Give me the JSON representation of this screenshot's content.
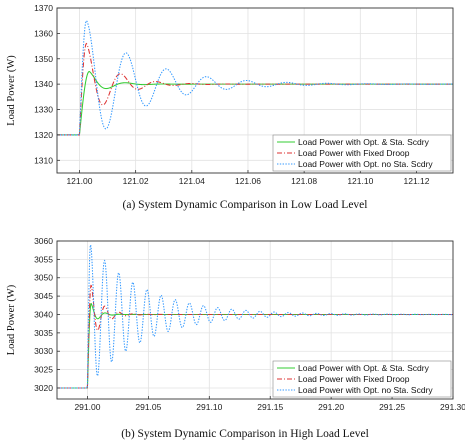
{
  "chart_data": [
    {
      "type": "line",
      "caption": "(a) System Dynamic Comparison in Low Load Level",
      "ylabel": "Load Power (W)",
      "xlabel": "",
      "xlim": [
        120.992,
        121.133
      ],
      "ylim": [
        1305,
        1370
      ],
      "xticks": [
        121.0,
        121.02,
        121.04,
        121.06,
        121.08,
        121.1,
        121.12
      ],
      "xtick_labels": [
        "121.00",
        "121.02",
        "121.04",
        "121.06",
        "121.08",
        "121.10",
        "121.12"
      ],
      "yticks": [
        1310,
        1320,
        1330,
        1340,
        1350,
        1360,
        1370
      ],
      "ytick_labels": [
        "1310",
        "1320",
        "1330",
        "1340",
        "1350",
        "1360",
        "1370"
      ],
      "grid": true,
      "legend_position": "bottom-right",
      "step_time": 121.0,
      "initial_value": 1320,
      "final_value": 1340,
      "series": [
        {
          "name": "Load Power with Opt. & Sta. Scdry",
          "color": "#33cc33",
          "dash": "solid",
          "amplitude": 5,
          "period": 0.0135,
          "tau": 0.006,
          "rise_time": 0.0035
        },
        {
          "name": "Load Power with Fixed Droop",
          "color": "#dd3333",
          "dash": "dashdot",
          "amplitude": 16,
          "period": 0.0125,
          "tau": 0.009,
          "rise_time": 0.0025
        },
        {
          "name": "Load Power with Opt. no Sta. Scdry",
          "color": "#3399ff",
          "dash": "dotted",
          "amplitude": 25,
          "period": 0.0143,
          "tau": 0.02,
          "rise_time": 0.0025
        }
      ]
    },
    {
      "type": "line",
      "caption": "(b) System Dynamic Comparison in High Load Level",
      "ylabel": "Load Power (W)",
      "xlabel": "",
      "xlim": [
        290.975,
        291.3
      ],
      "ylim": [
        3017,
        3060
      ],
      "xticks": [
        291.0,
        291.05,
        291.1,
        291.15,
        291.2,
        291.25,
        291.3
      ],
      "xtick_labels": [
        "291.00",
        "291.05",
        "291.10",
        "291.15",
        "291.20",
        "291.25",
        "291.30"
      ],
      "yticks": [
        3020,
        3025,
        3030,
        3035,
        3040,
        3045,
        3050,
        3055,
        3060
      ],
      "ytick_labels": [
        "3020",
        "3025",
        "3030",
        "3035",
        "3040",
        "3045",
        "3050",
        "3055",
        "3060"
      ],
      "grid": true,
      "legend_position": "bottom-right",
      "step_time": 291.0,
      "initial_value": 3020,
      "final_value": 3040,
      "series": [
        {
          "name": "Load Power with Opt. & Sta. Scdry",
          "color": "#33cc33",
          "dash": "solid",
          "amplitude": 3,
          "period": 0.012,
          "tau": 0.006,
          "rise_time": 0.003
        },
        {
          "name": "Load Power with Fixed Droop",
          "color": "#dd3333",
          "dash": "dashdot",
          "amplitude": 8,
          "period": 0.0115,
          "tau": 0.009,
          "rise_time": 0.003
        },
        {
          "name": "Load Power with Opt. no Sta. Scdry",
          "color": "#3399ff",
          "dash": "dotted",
          "amplitude": 19,
          "period": 0.0116,
          "tau": 0.045,
          "rise_time": 0.0025
        }
      ]
    }
  ]
}
